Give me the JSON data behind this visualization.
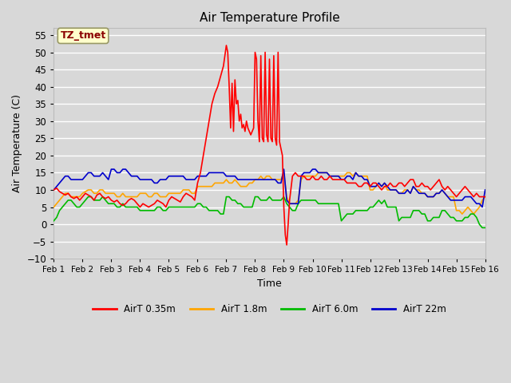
{
  "title": "Air Temperature Profile",
  "xlabel": "Time",
  "ylabel": "Air Temperature (C)",
  "ylim": [
    -10,
    57
  ],
  "yticks": [
    -10,
    -5,
    0,
    5,
    10,
    15,
    20,
    25,
    30,
    35,
    40,
    45,
    50,
    55
  ],
  "background_color": "#d8d8d8",
  "plot_bg_color": "#d8d8d8",
  "grid_color": "#ffffff",
  "annotation_text": "TZ_tmet",
  "annotation_color": "#8b0000",
  "annotation_bg": "#ffffcc",
  "series": {
    "AirT 0.35m": {
      "color": "#ff0000",
      "x": [
        0.0,
        0.1,
        0.2,
        0.3,
        0.4,
        0.5,
        0.6,
        0.7,
        0.8,
        0.9,
        1.0,
        1.1,
        1.2,
        1.3,
        1.4,
        1.5,
        1.6,
        1.7,
        1.8,
        1.9,
        2.0,
        2.1,
        2.2,
        2.3,
        2.4,
        2.5,
        2.6,
        2.7,
        2.8,
        2.9,
        3.0,
        3.1,
        3.2,
        3.3,
        3.4,
        3.5,
        3.6,
        3.7,
        3.8,
        3.9,
        4.0,
        4.1,
        4.2,
        4.3,
        4.4,
        4.5,
        4.6,
        4.7,
        4.8,
        4.9,
        5.0,
        5.1,
        5.2,
        5.3,
        5.4,
        5.5,
        5.6,
        5.7,
        5.8,
        5.9,
        6.0,
        6.05,
        6.1,
        6.15,
        6.2,
        6.25,
        6.3,
        6.35,
        6.4,
        6.45,
        6.5,
        6.55,
        6.6,
        6.65,
        6.7,
        6.75,
        6.8,
        6.85,
        6.9,
        6.95,
        7.0,
        7.05,
        7.1,
        7.15,
        7.2,
        7.25,
        7.3,
        7.35,
        7.4,
        7.45,
        7.5,
        7.55,
        7.6,
        7.65,
        7.7,
        7.75,
        7.8,
        7.85,
        7.9,
        7.95,
        8.0,
        8.05,
        8.1,
        8.15,
        8.2,
        8.3,
        8.4,
        8.5,
        8.6,
        8.7,
        8.8,
        8.9,
        9.0,
        9.1,
        9.2,
        9.3,
        9.4,
        9.5,
        9.6,
        9.7,
        9.8,
        9.9,
        10.0,
        10.1,
        10.2,
        10.3,
        10.4,
        10.5,
        10.6,
        10.7,
        10.8,
        10.9,
        11.0,
        11.1,
        11.2,
        11.3,
        11.4,
        11.5,
        11.6,
        11.7,
        11.8,
        11.9,
        12.0,
        12.1,
        12.2,
        12.3,
        12.4,
        12.5,
        12.6,
        12.7,
        12.8,
        12.9,
        13.0,
        13.1,
        13.2,
        13.3,
        13.4,
        13.5,
        13.6,
        13.7,
        13.8,
        13.9,
        14.0,
        14.1,
        14.2,
        14.3,
        14.4,
        14.5,
        14.6,
        14.7,
        14.8,
        14.9,
        15.0
      ],
      "y": [
        10,
        10.5,
        9.5,
        9,
        8.5,
        9,
        8,
        7.5,
        8,
        7,
        8,
        9,
        8.5,
        8,
        7,
        8.5,
        9,
        8,
        7.5,
        8,
        7,
        6.5,
        7,
        6,
        5.5,
        6,
        7,
        7.5,
        7,
        6,
        5,
        6,
        5.5,
        5,
        5.5,
        6,
        7,
        6.5,
        6,
        5,
        7,
        8,
        7.5,
        7,
        6.5,
        8,
        9,
        8.5,
        8,
        7,
        12,
        15,
        20,
        25,
        30,
        35,
        38,
        40,
        43,
        46,
        52,
        50,
        40,
        28,
        41,
        27,
        42,
        35,
        36,
        30,
        32,
        28,
        29,
        27,
        30,
        28,
        27,
        26,
        27,
        28,
        50,
        48,
        30,
        24,
        49,
        25,
        24,
        50,
        26,
        24,
        48,
        25,
        24,
        49,
        25,
        23,
        50,
        24,
        22,
        20,
        5,
        -3,
        -6,
        0,
        7,
        14,
        15,
        14,
        14,
        14,
        13,
        13,
        14,
        13,
        13,
        14,
        13,
        13,
        14,
        13,
        13,
        13,
        13,
        13,
        12,
        12,
        12,
        12,
        11,
        11,
        12,
        12,
        11,
        12,
        12,
        11,
        10,
        11,
        11,
        12,
        11,
        11,
        12,
        12,
        11,
        12,
        13,
        13,
        11,
        11,
        12,
        11,
        11,
        10,
        11,
        12,
        13,
        11,
        10,
        11,
        10,
        9,
        8,
        9,
        10,
        11,
        10,
        9,
        8,
        9,
        8,
        8,
        8
      ]
    },
    "AirT 1.8m": {
      "color": "#ffa500",
      "x": [
        0.0,
        0.1,
        0.2,
        0.3,
        0.4,
        0.5,
        0.6,
        0.7,
        0.8,
        0.9,
        1.0,
        1.1,
        1.2,
        1.3,
        1.4,
        1.5,
        1.6,
        1.7,
        1.8,
        1.9,
        2.0,
        2.1,
        2.2,
        2.3,
        2.4,
        2.5,
        2.6,
        2.7,
        2.8,
        2.9,
        3.0,
        3.1,
        3.2,
        3.3,
        3.4,
        3.5,
        3.6,
        3.7,
        3.8,
        3.9,
        4.0,
        4.1,
        4.2,
        4.3,
        4.4,
        4.5,
        4.6,
        4.7,
        4.8,
        4.9,
        5.0,
        5.1,
        5.2,
        5.3,
        5.4,
        5.5,
        5.6,
        5.7,
        5.8,
        5.9,
        6.0,
        6.1,
        6.2,
        6.3,
        6.4,
        6.5,
        6.6,
        6.7,
        6.8,
        6.9,
        7.0,
        7.1,
        7.2,
        7.3,
        7.4,
        7.5,
        7.6,
        7.7,
        7.8,
        7.9,
        8.0,
        8.1,
        8.2,
        8.3,
        8.4,
        8.5,
        8.6,
        8.7,
        8.8,
        8.9,
        9.0,
        9.1,
        9.2,
        9.3,
        9.4,
        9.5,
        9.6,
        9.7,
        9.8,
        9.9,
        10.0,
        10.1,
        10.2,
        10.3,
        10.4,
        10.5,
        10.6,
        10.7,
        10.8,
        10.9,
        11.0,
        11.1,
        11.2,
        11.3,
        11.4,
        11.5,
        11.6,
        11.7,
        11.8,
        11.9,
        12.0,
        12.1,
        12.2,
        12.3,
        12.4,
        12.5,
        12.6,
        12.7,
        12.8,
        12.9,
        13.0,
        13.1,
        13.2,
        13.3,
        13.4,
        13.5,
        13.6,
        13.7,
        13.8,
        13.9,
        14.0,
        14.1,
        14.2,
        14.3,
        14.4,
        14.5,
        14.6,
        14.7,
        14.8,
        14.9,
        15.0
      ],
      "y": [
        5,
        6,
        7,
        8,
        9,
        9,
        8,
        8,
        8,
        8,
        9,
        9.5,
        10,
        10,
        9,
        9,
        10,
        10,
        9,
        9,
        9,
        9,
        8,
        8,
        9,
        8,
        8,
        8,
        8,
        8,
        9,
        9,
        9,
        8,
        8,
        9,
        9,
        8,
        8,
        8,
        9,
        9,
        9,
        9,
        9,
        10,
        10,
        10,
        9,
        9,
        11,
        11,
        11,
        11,
        11,
        11,
        12,
        12,
        12,
        12,
        13,
        12,
        12,
        13,
        12,
        11,
        11,
        11,
        12,
        12,
        13,
        13,
        14,
        13,
        14,
        14,
        13,
        13,
        13,
        13,
        15,
        8,
        6,
        6,
        6,
        7,
        13,
        14,
        14,
        14,
        14,
        14,
        15,
        15,
        15,
        15,
        14,
        14,
        14,
        14,
        14,
        14,
        15,
        15,
        14,
        15,
        14,
        14,
        14,
        14,
        10,
        10,
        11,
        12,
        11,
        12,
        10,
        10,
        10,
        10,
        9,
        9,
        10,
        10,
        9,
        11,
        10,
        10,
        9,
        9,
        8,
        8,
        8,
        9,
        9,
        10,
        9,
        8,
        8,
        8,
        4,
        4,
        3,
        4,
        5,
        4,
        3,
        4,
        5,
        7,
        8
      ]
    },
    "AirT 6.0m": {
      "color": "#00bb00",
      "x": [
        0.0,
        0.1,
        0.2,
        0.3,
        0.4,
        0.5,
        0.6,
        0.7,
        0.8,
        0.9,
        1.0,
        1.1,
        1.2,
        1.3,
        1.4,
        1.5,
        1.6,
        1.7,
        1.8,
        1.9,
        2.0,
        2.1,
        2.2,
        2.3,
        2.4,
        2.5,
        2.6,
        2.7,
        2.8,
        2.9,
        3.0,
        3.1,
        3.2,
        3.3,
        3.4,
        3.5,
        3.6,
        3.7,
        3.8,
        3.9,
        4.0,
        4.1,
        4.2,
        4.3,
        4.4,
        4.5,
        4.6,
        4.7,
        4.8,
        4.9,
        5.0,
        5.1,
        5.2,
        5.3,
        5.4,
        5.5,
        5.6,
        5.7,
        5.8,
        5.9,
        6.0,
        6.1,
        6.2,
        6.3,
        6.4,
        6.5,
        6.6,
        6.7,
        6.8,
        6.9,
        7.0,
        7.1,
        7.2,
        7.3,
        7.4,
        7.5,
        7.6,
        7.7,
        7.8,
        7.9,
        8.0,
        8.1,
        8.2,
        8.3,
        8.4,
        8.5,
        8.6,
        8.7,
        8.8,
        8.9,
        9.0,
        9.1,
        9.2,
        9.3,
        9.4,
        9.5,
        9.6,
        9.7,
        9.8,
        9.9,
        10.0,
        10.1,
        10.2,
        10.3,
        10.4,
        10.5,
        10.6,
        10.7,
        10.8,
        10.9,
        11.0,
        11.1,
        11.2,
        11.3,
        11.4,
        11.5,
        11.6,
        11.7,
        11.8,
        11.9,
        12.0,
        12.1,
        12.2,
        12.3,
        12.4,
        12.5,
        12.6,
        12.7,
        12.8,
        12.9,
        13.0,
        13.1,
        13.2,
        13.3,
        13.4,
        13.5,
        13.6,
        13.7,
        13.8,
        13.9,
        14.0,
        14.1,
        14.2,
        14.3,
        14.4,
        14.5,
        14.6,
        14.7,
        14.8,
        14.9,
        15.0
      ],
      "y": [
        1,
        2,
        4,
        5,
        6,
        7,
        7,
        6,
        5,
        5,
        6,
        7,
        8,
        8,
        7,
        7,
        7,
        8,
        7,
        6,
        6,
        6,
        5,
        5,
        6,
        5,
        5,
        5,
        5,
        5,
        4,
        4,
        4,
        4,
        4,
        4,
        5,
        5,
        4,
        4,
        5,
        5,
        5,
        5,
        5,
        5,
        5,
        5,
        5,
        5,
        6,
        6,
        5,
        5,
        4,
        4,
        4,
        4,
        3,
        3,
        8,
        8,
        7,
        7,
        6,
        6,
        5,
        5,
        5,
        5,
        8,
        8,
        7,
        7,
        7,
        8,
        7,
        7,
        7,
        7,
        8,
        6,
        5,
        4,
        4,
        6,
        7,
        7,
        7,
        7,
        7,
        7,
        6,
        6,
        6,
        6,
        6,
        6,
        6,
        6,
        1,
        2,
        3,
        3,
        3,
        4,
        4,
        4,
        4,
        4,
        5,
        5,
        6,
        7,
        6,
        7,
        5,
        5,
        5,
        5,
        1,
        2,
        2,
        2,
        2,
        4,
        4,
        4,
        3,
        3,
        1,
        1,
        2,
        2,
        2,
        4,
        4,
        3,
        2,
        2,
        1,
        1,
        1,
        2,
        2,
        3,
        3,
        2,
        0,
        -1,
        -1
      ]
    },
    "AirT 22m": {
      "color": "#0000cc",
      "x": [
        0.0,
        0.1,
        0.2,
        0.3,
        0.4,
        0.5,
        0.6,
        0.7,
        0.8,
        0.9,
        1.0,
        1.1,
        1.2,
        1.3,
        1.4,
        1.5,
        1.6,
        1.7,
        1.8,
        1.9,
        2.0,
        2.1,
        2.2,
        2.3,
        2.4,
        2.5,
        2.6,
        2.7,
        2.8,
        2.9,
        3.0,
        3.1,
        3.2,
        3.3,
        3.4,
        3.5,
        3.6,
        3.7,
        3.8,
        3.9,
        4.0,
        4.1,
        4.2,
        4.3,
        4.4,
        4.5,
        4.6,
        4.7,
        4.8,
        4.9,
        5.0,
        5.1,
        5.2,
        5.3,
        5.4,
        5.5,
        5.6,
        5.7,
        5.8,
        5.9,
        6.0,
        6.1,
        6.2,
        6.3,
        6.4,
        6.5,
        6.6,
        6.7,
        6.8,
        6.9,
        7.0,
        7.1,
        7.2,
        7.3,
        7.4,
        7.5,
        7.6,
        7.7,
        7.8,
        7.9,
        8.0,
        8.1,
        8.2,
        8.3,
        8.4,
        8.5,
        8.6,
        8.7,
        8.8,
        8.9,
        9.0,
        9.1,
        9.2,
        9.3,
        9.4,
        9.5,
        9.6,
        9.7,
        9.8,
        9.9,
        10.0,
        10.1,
        10.2,
        10.3,
        10.4,
        10.5,
        10.6,
        10.7,
        10.8,
        10.9,
        11.0,
        11.1,
        11.2,
        11.3,
        11.4,
        11.5,
        11.6,
        11.7,
        11.8,
        11.9,
        12.0,
        12.1,
        12.2,
        12.3,
        12.4,
        12.5,
        12.6,
        12.7,
        12.8,
        12.9,
        13.0,
        13.1,
        13.2,
        13.3,
        13.4,
        13.5,
        13.6,
        13.7,
        13.8,
        13.9,
        14.0,
        14.1,
        14.2,
        14.3,
        14.4,
        14.5,
        14.6,
        14.7,
        14.8,
        14.9,
        15.0
      ],
      "y": [
        10,
        11,
        12,
        13,
        14,
        14,
        13,
        13,
        13,
        13,
        13,
        14,
        15,
        15,
        14,
        14,
        14,
        15,
        14,
        13,
        16,
        16,
        15,
        15,
        16,
        16,
        15,
        14,
        14,
        14,
        13,
        13,
        13,
        13,
        13,
        12,
        12,
        13,
        13,
        13,
        14,
        14,
        14,
        14,
        14,
        14,
        13,
        13,
        13,
        13,
        14,
        14,
        14,
        14,
        15,
        15,
        15,
        15,
        15,
        15,
        14,
        14,
        14,
        14,
        13,
        13,
        13,
        13,
        13,
        13,
        13,
        13,
        13,
        13,
        13,
        13,
        13,
        13,
        12,
        12,
        16,
        7,
        6,
        6,
        6,
        6,
        14,
        15,
        15,
        15,
        16,
        16,
        15,
        15,
        15,
        15,
        14,
        14,
        14,
        14,
        13,
        13,
        14,
        14,
        13,
        15,
        14,
        14,
        13,
        13,
        11,
        11,
        11,
        12,
        11,
        12,
        11,
        10,
        10,
        10,
        9,
        9,
        9,
        10,
        9,
        11,
        10,
        9,
        9,
        9,
        8,
        8,
        8,
        9,
        9,
        10,
        9,
        8,
        7,
        7,
        7,
        7,
        7,
        8,
        8,
        8,
        7,
        6,
        6,
        5,
        10
      ]
    }
  },
  "xtick_positions": [
    0,
    1,
    2,
    3,
    4,
    5,
    6,
    7,
    8,
    9,
    10,
    11,
    12,
    13,
    14,
    15
  ],
  "xtick_labels": [
    "Feb 1",
    "Feb 2",
    "Feb 3",
    "Feb 4",
    "Feb 5",
    "Feb 6",
    "Feb 7",
    "Feb 8",
    "Feb 9",
    "Feb 10",
    "Feb 11",
    "Feb 12",
    "Feb 13",
    "Feb 14",
    "Feb 15",
    "Feb 16"
  ],
  "figsize": [
    6.4,
    4.8
  ],
  "dpi": 100
}
